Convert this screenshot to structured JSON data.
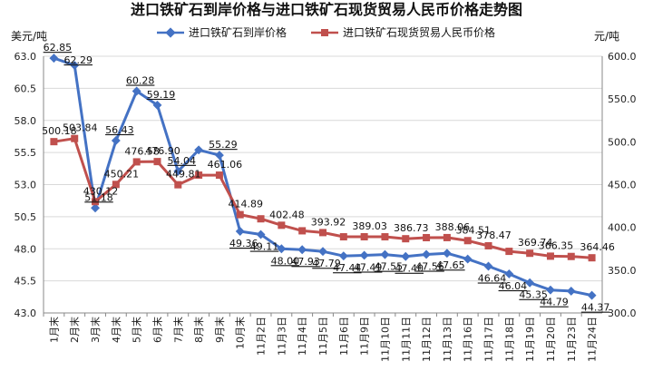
{
  "chart_data": {
    "type": "line",
    "title": "进口铁矿石到岸价格与进口铁矿石现货贸易人民币价格走势图",
    "left_unit": "美元/吨",
    "right_unit": "元/吨",
    "categories": [
      "1月末",
      "2月末",
      "3月末",
      "4月末",
      "5月末",
      "6月末",
      "7月末",
      "8月末",
      "9月末",
      "10月末",
      "11月2日",
      "11月3日",
      "11月4日",
      "11月5日",
      "11月6日",
      "11月9日",
      "11月10日",
      "11月11日",
      "11月12日",
      "11月13日",
      "11月16日",
      "11月17日",
      "11月18日",
      "11月19日",
      "11月20日",
      "11月23日",
      "11月24日"
    ],
    "left_axis": {
      "min": 43.0,
      "max": 63.0,
      "ticks": [
        "43.0",
        "45.5",
        "48.0",
        "50.5",
        "53.0",
        "55.5",
        "58.0",
        "60.5",
        "63.0"
      ]
    },
    "right_axis": {
      "min": 300.0,
      "max": 600.0,
      "ticks": [
        "300.0",
        "350.0",
        "400.0",
        "450.0",
        "500.0",
        "550.0",
        "600.0"
      ]
    },
    "series": [
      {
        "name": "进口铁矿石到岸价格",
        "axis": "left",
        "color": "#4472C4",
        "marker": "diamond",
        "values": [
          62.85,
          62.29,
          51.18,
          56.43,
          60.28,
          59.19,
          54.04,
          55.7,
          55.29,
          49.36,
          49.11,
          48.0,
          47.93,
          47.79,
          47.44,
          47.49,
          47.55,
          47.4,
          47.56,
          47.65,
          47.2,
          46.64,
          46.04,
          45.35,
          44.79,
          44.7,
          44.37
        ],
        "labels": [
          "62.85",
          "62.29",
          "51.18",
          "56.43",
          "60.28",
          "59.19",
          "54.04",
          "",
          "55.29",
          "49.36",
          "49.11",
          "48.00",
          "47.93",
          "47.79",
          "47.44",
          "47.49",
          "47.55",
          "47.40",
          "47.56",
          "47.65",
          "",
          "46.64",
          "46.04",
          "45.35",
          "44.79",
          "",
          "44.37"
        ]
      },
      {
        "name": "进口铁矿石现货贸易人民币价格",
        "axis": "right",
        "color": "#C0504D",
        "marker": "square",
        "values": [
          500.18,
          503.84,
          430.12,
          450.21,
          476.58,
          476.9,
          449.81,
          461.06,
          461.06,
          414.89,
          410.0,
          402.48,
          396.0,
          393.92,
          389.0,
          389.03,
          389.0,
          386.73,
          388.0,
          388.06,
          384.51,
          378.47,
          372.0,
          369.74,
          366.35,
          366.0,
          364.46
        ],
        "labels": [
          "500.18",
          "503.84",
          "430.12",
          "450.21",
          "476.58",
          "476.90",
          "449.81",
          "",
          "461.06",
          "414.89",
          "",
          "402.48",
          "",
          "393.92",
          "",
          "389.03",
          "",
          "386.73",
          "",
          "388.06",
          "384.51",
          "378.47",
          "",
          "369.74",
          "366.35",
          "",
          "364.46"
        ]
      }
    ],
    "legend_position": "top",
    "grid": true
  }
}
